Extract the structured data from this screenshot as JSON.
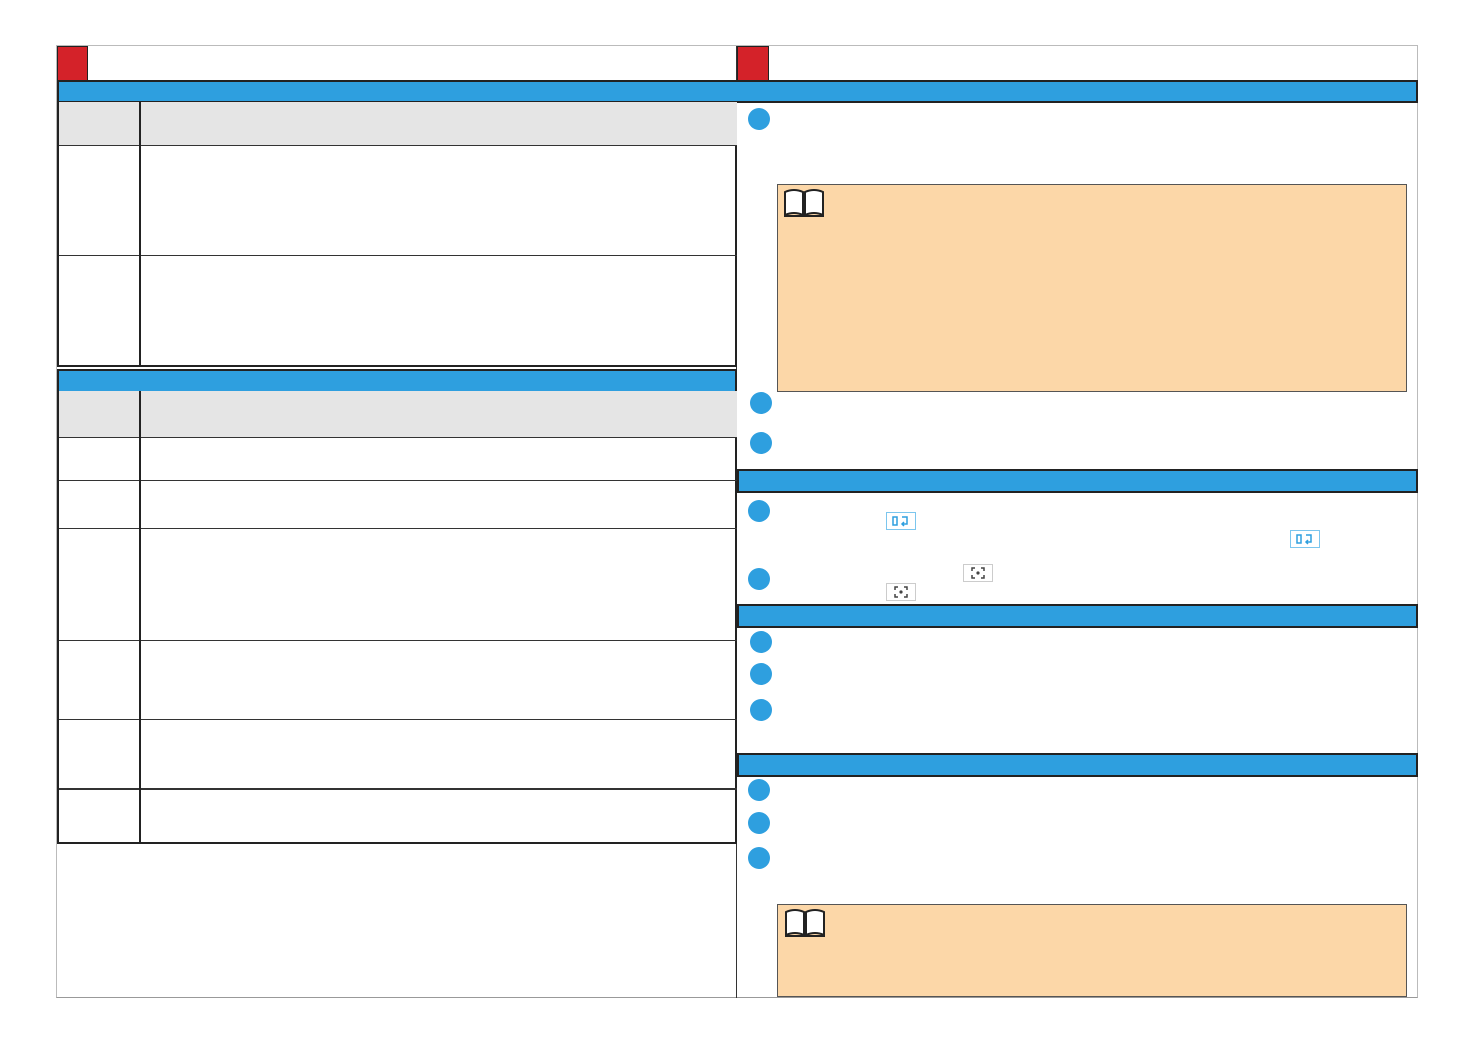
{
  "colors": {
    "accent": "#2e9fdf",
    "marker": "#d42229",
    "header_fill": "#e5e5e5",
    "note_fill": "#fcd7a8"
  },
  "icons": {
    "note": "book-icon",
    "switch": "switch-camera-icon",
    "focus": "focus-icon"
  }
}
